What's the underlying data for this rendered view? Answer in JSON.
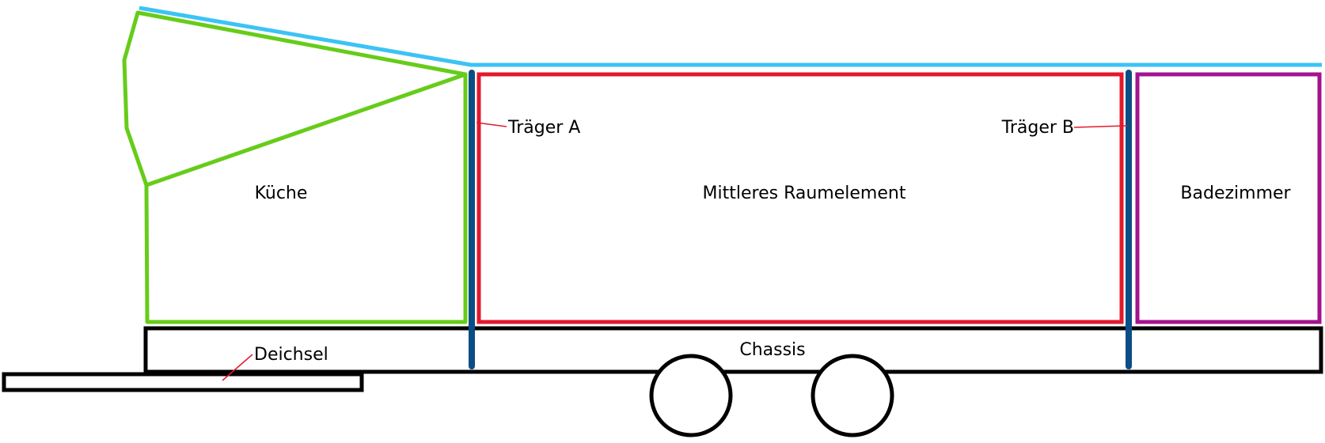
{
  "labels": {
    "kitchen": "Küche",
    "middle_room": "Mittleres Raumelement",
    "bathroom": "Badezimmer",
    "beam_a": "Träger A",
    "beam_b": "Träger B",
    "chassis": "Chassis",
    "drawbar": "Deichsel"
  },
  "colors": {
    "roof": "#3cc3f5",
    "kitchen": "#66cc1a",
    "middle_room": "#e3192c",
    "bathroom": "#a3138f",
    "beams": "#0a4e85",
    "chassis": "#000000",
    "leader_line": "#e3192c"
  }
}
